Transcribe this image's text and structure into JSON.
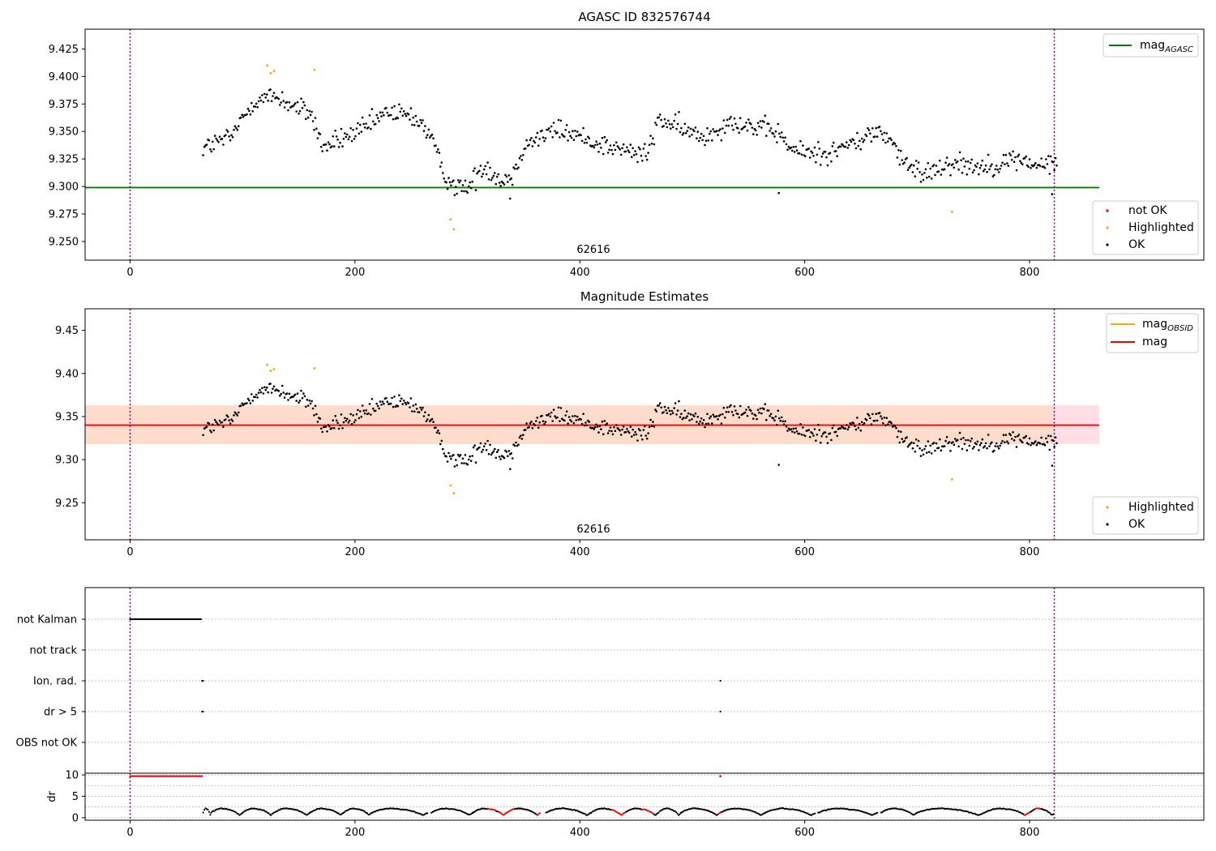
{
  "chart_data": [
    {
      "type": "scatter",
      "title": "AGASC ID 832576744",
      "xlim": [
        -40,
        955
      ],
      "ylim": [
        9.233,
        9.443
      ],
      "x_ticks": [
        0,
        200,
        400,
        600,
        800
      ],
      "y_ticks": [
        9.25,
        9.275,
        9.3,
        9.325,
        9.35,
        9.375,
        9.4,
        9.425
      ],
      "y_tick_labels": [
        "9.250",
        "9.275",
        "9.300",
        "9.325",
        "9.350",
        "9.375",
        "9.400",
        "9.425"
      ],
      "obsid_boundaries": [
        0,
        822
      ],
      "obsid_label": "62616",
      "reference_lines": [
        {
          "name": "mag",
          "sub": "AGASC",
          "value": 9.299,
          "color": "#008000",
          "x_range": [
            -40,
            862
          ]
        }
      ],
      "legend_lines": [
        {
          "name": "mag",
          "sub": "AGASC",
          "color": "#008000"
        }
      ],
      "legend_points": [
        {
          "name": "not OK",
          "color": "#ff0000"
        },
        {
          "name": "Highlighted",
          "color": "#ffa500"
        },
        {
          "name": "OK",
          "color": "#000000"
        }
      ],
      "highlighted_points": [
        [
          122,
          9.41
        ],
        [
          125,
          9.403
        ],
        [
          128,
          9.405
        ],
        [
          164,
          9.406
        ],
        [
          285,
          9.27
        ],
        [
          288,
          9.261
        ],
        [
          731,
          9.277
        ]
      ]
    },
    {
      "type": "scatter",
      "title": "Magnitude Estimates",
      "xlim": [
        -40,
        955
      ],
      "ylim": [
        9.207,
        9.475
      ],
      "x_ticks": [
        0,
        200,
        400,
        600,
        800
      ],
      "y_ticks": [
        9.25,
        9.3,
        9.35,
        9.4,
        9.45
      ],
      "y_tick_labels": [
        "9.25",
        "9.30",
        "9.35",
        "9.40",
        "9.45"
      ],
      "obsid_boundaries": [
        0,
        822
      ],
      "obsid_label": "62616",
      "reference_lines": [
        {
          "name": "mag",
          "value": 9.34,
          "color": "#ff0000",
          "x_range": [
            -40,
            862
          ]
        }
      ],
      "bands": [
        {
          "low": 9.318,
          "high": 9.363,
          "color": "#ffc0cb",
          "x_range": [
            -40,
            862
          ]
        },
        {
          "low": 9.318,
          "high": 9.363,
          "color": "#ffdab9",
          "x_range": [
            -40,
            822
          ]
        }
      ],
      "legend_lines": [
        {
          "name": "mag",
          "sub": "OBSID",
          "color": "#ffa500"
        },
        {
          "name": "mag",
          "sub": "",
          "color": "#ff0000"
        }
      ],
      "legend_points": [
        {
          "name": "Highlighted",
          "color": "#ffa500"
        },
        {
          "name": "OK",
          "color": "#000000"
        }
      ],
      "highlighted_points": [
        [
          122,
          9.41
        ],
        [
          125,
          9.403
        ],
        [
          128,
          9.405
        ],
        [
          164,
          9.406
        ],
        [
          285,
          9.27
        ],
        [
          288,
          9.261
        ],
        [
          731,
          9.277
        ]
      ]
    },
    {
      "type": "scatter",
      "xlim": [
        -40,
        955
      ],
      "categories": [
        "not Kalman",
        "not track",
        "Ion. rad.",
        "dr > 5",
        "OBS not OK"
      ],
      "obsid_boundaries": [
        0,
        822
      ],
      "flag_points": [
        {
          "category": "not Kalman",
          "x_range": [
            0,
            63
          ]
        },
        {
          "category": "Ion. rad.",
          "x_values": [
            64,
            65,
            525
          ]
        },
        {
          "category": "dr > 5",
          "x_values": [
            64,
            65,
            525
          ]
        }
      ]
    },
    {
      "type": "scatter",
      "xlim": [
        -40,
        955
      ],
      "ylim": [
        -0.6,
        10.4
      ],
      "ylabel": "dr",
      "x_ticks": [
        0,
        200,
        400,
        600,
        800
      ],
      "y_ticks": [
        0,
        5,
        10
      ],
      "y_tick_labels": [
        "0",
        "5",
        "10"
      ],
      "obsid_boundaries": [
        0,
        822
      ],
      "clipped_red_points": {
        "x_range": [
          0,
          65
        ],
        "value": 9.7
      },
      "red_segments": [
        [
          318,
          325
        ],
        [
          328,
          342
        ],
        [
          362,
          366
        ],
        [
          428,
          440
        ],
        [
          455,
          466
        ],
        [
          523,
          526
        ],
        [
          795,
          800
        ],
        [
          805,
          810
        ]
      ]
    }
  ]
}
